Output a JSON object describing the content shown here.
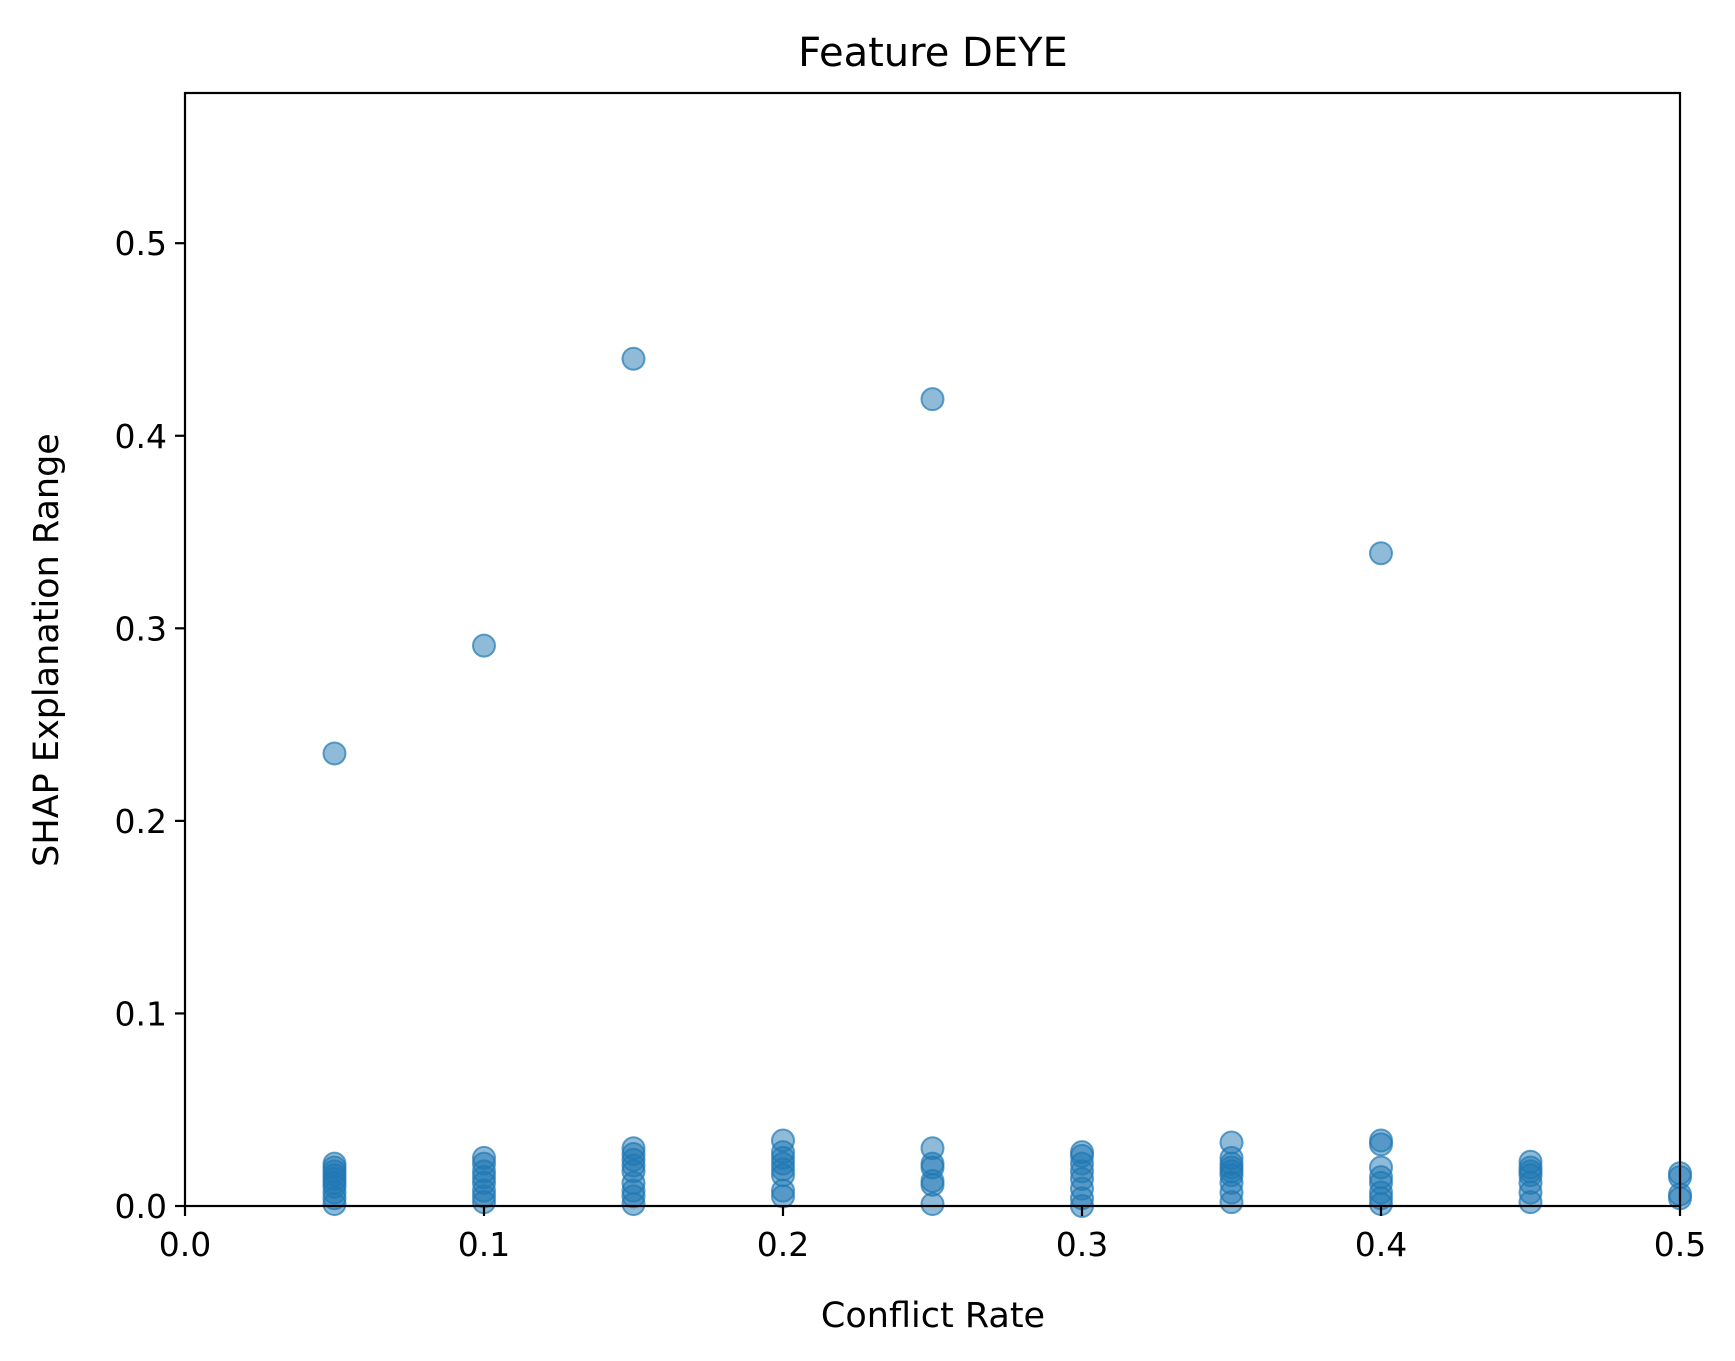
{
  "chart_data": {
    "type": "scatter",
    "title": "Feature DEYE",
    "xlabel": "Conflict Rate",
    "ylabel": "SHAP Explanation Range",
    "xlim": [
      0.0,
      0.5
    ],
    "ylim": [
      0.0,
      0.578
    ],
    "xticks": [
      "0.0",
      "0.1",
      "0.2",
      "0.3",
      "0.4",
      "0.5"
    ],
    "yticks": [
      "0.0",
      "0.1",
      "0.2",
      "0.3",
      "0.4",
      "0.5"
    ],
    "grid": false,
    "legend": "none",
    "color": "#1f77b4",
    "points": [
      [
        0.05,
        0.235
      ],
      [
        0.05,
        0.022
      ],
      [
        0.05,
        0.02
      ],
      [
        0.05,
        0.018
      ],
      [
        0.05,
        0.016
      ],
      [
        0.05,
        0.014
      ],
      [
        0.05,
        0.012
      ],
      [
        0.05,
        0.01
      ],
      [
        0.05,
        0.007
      ],
      [
        0.05,
        0.004
      ],
      [
        0.05,
        0.001
      ],
      [
        0.1,
        0.291
      ],
      [
        0.1,
        0.025
      ],
      [
        0.1,
        0.022
      ],
      [
        0.1,
        0.018
      ],
      [
        0.1,
        0.015
      ],
      [
        0.1,
        0.012
      ],
      [
        0.1,
        0.008
      ],
      [
        0.1,
        0.005
      ],
      [
        0.1,
        0.002
      ],
      [
        0.15,
        0.44
      ],
      [
        0.15,
        0.03
      ],
      [
        0.15,
        0.027
      ],
      [
        0.15,
        0.024
      ],
      [
        0.15,
        0.021
      ],
      [
        0.15,
        0.018
      ],
      [
        0.15,
        0.012
      ],
      [
        0.15,
        0.008
      ],
      [
        0.15,
        0.005
      ],
      [
        0.15,
        0.001
      ],
      [
        0.2,
        0.034
      ],
      [
        0.2,
        0.028
      ],
      [
        0.2,
        0.025
      ],
      [
        0.2,
        0.022
      ],
      [
        0.2,
        0.019
      ],
      [
        0.2,
        0.016
      ],
      [
        0.2,
        0.008
      ],
      [
        0.2,
        0.005
      ],
      [
        0.25,
        0.419
      ],
      [
        0.25,
        0.03
      ],
      [
        0.25,
        0.022
      ],
      [
        0.25,
        0.02
      ],
      [
        0.25,
        0.013
      ],
      [
        0.25,
        0.011
      ],
      [
        0.25,
        0.001
      ],
      [
        0.3,
        0.028
      ],
      [
        0.3,
        0.026
      ],
      [
        0.3,
        0.022
      ],
      [
        0.3,
        0.018
      ],
      [
        0.3,
        0.014
      ],
      [
        0.3,
        0.009
      ],
      [
        0.3,
        0.004
      ],
      [
        0.3,
        0.0
      ],
      [
        0.35,
        0.033
      ],
      [
        0.35,
        0.025
      ],
      [
        0.35,
        0.022
      ],
      [
        0.35,
        0.02
      ],
      [
        0.35,
        0.018
      ],
      [
        0.35,
        0.016
      ],
      [
        0.35,
        0.012
      ],
      [
        0.35,
        0.007
      ],
      [
        0.35,
        0.002
      ],
      [
        0.4,
        0.339
      ],
      [
        0.4,
        0.034
      ],
      [
        0.4,
        0.032
      ],
      [
        0.4,
        0.02
      ],
      [
        0.4,
        0.015
      ],
      [
        0.4,
        0.012
      ],
      [
        0.4,
        0.007
      ],
      [
        0.4,
        0.004
      ],
      [
        0.4,
        0.001
      ],
      [
        0.45,
        0.023
      ],
      [
        0.45,
        0.02
      ],
      [
        0.45,
        0.018
      ],
      [
        0.45,
        0.016
      ],
      [
        0.45,
        0.012
      ],
      [
        0.45,
        0.007
      ],
      [
        0.45,
        0.002
      ],
      [
        0.5,
        0.017
      ],
      [
        0.5,
        0.015
      ],
      [
        0.5,
        0.006
      ],
      [
        0.5,
        0.004
      ]
    ]
  }
}
